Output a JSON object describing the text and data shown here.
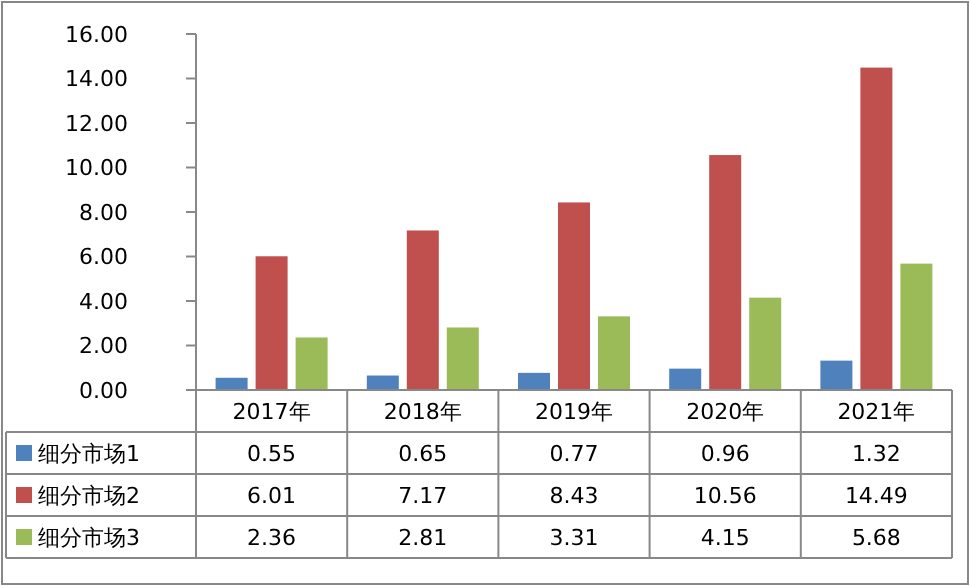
{
  "chart_data": {
    "type": "bar",
    "categories": [
      "2017年",
      "2018年",
      "2019年",
      "2020年",
      "2021年"
    ],
    "series": [
      {
        "name": "细分市场1",
        "color": "#4f81bd",
        "values": [
          0.55,
          0.65,
          0.77,
          0.96,
          1.32
        ]
      },
      {
        "name": "细分市场2",
        "color": "#c0504d",
        "values": [
          6.01,
          7.17,
          8.43,
          10.56,
          14.49
        ]
      },
      {
        "name": "细分市场3",
        "color": "#9bbb59",
        "values": [
          2.36,
          2.81,
          3.31,
          4.15,
          5.68
        ]
      }
    ],
    "ylim": [
      0,
      16
    ],
    "yticks": [
      {
        "value": 0,
        "label": "0.00"
      },
      {
        "value": 2,
        "label": "2.00"
      },
      {
        "value": 4,
        "label": "4.00"
      },
      {
        "value": 6,
        "label": "6.00"
      },
      {
        "value": 8,
        "label": "8.00"
      },
      {
        "value": 10,
        "label": "10.00"
      },
      {
        "value": 12,
        "label": "12.00"
      },
      {
        "value": 14,
        "label": "14.00"
      },
      {
        "value": 16,
        "label": "16.00"
      }
    ],
    "data_labels": true,
    "legend": "bottom",
    "grid": false
  }
}
